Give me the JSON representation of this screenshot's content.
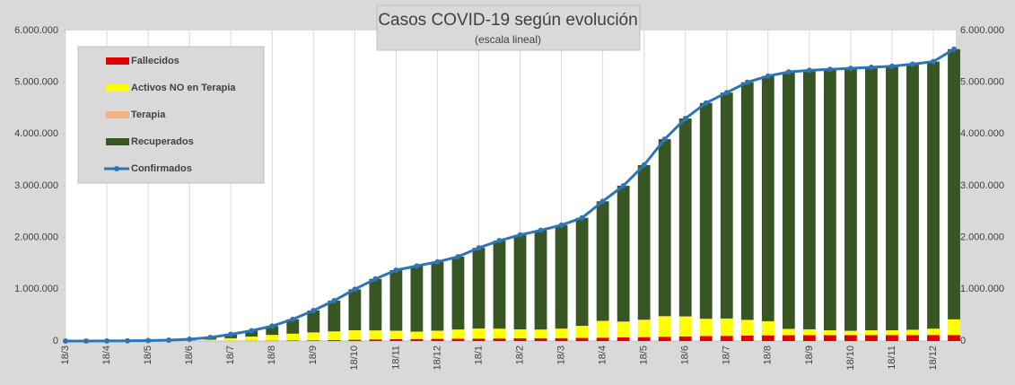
{
  "chart_data": {
    "type": "bar",
    "title": "Casos COVID-19 según evolución",
    "subtitle": "(escala lineal)",
    "categories": [
      "18/3",
      null,
      "18/4",
      null,
      "18/5",
      null,
      "18/6",
      null,
      "18/7",
      null,
      "18/8",
      null,
      "18/9",
      null,
      "18/10",
      null,
      "18/11",
      null,
      "18/12",
      null,
      "18/1",
      null,
      "18/2",
      null,
      "18/3",
      null,
      "18/4",
      null,
      "18/5",
      null,
      "18/6",
      null,
      "18/7",
      null,
      "18/8",
      null,
      "18/9",
      null,
      "18/10",
      null,
      "18/11",
      null,
      "18/12",
      null
    ],
    "stacked": true,
    "grid": "x",
    "legend": "top-left",
    "ylim": [
      0,
      6000000
    ],
    "yticks": [
      {
        "value": 0,
        "label": "0"
      },
      {
        "value": 1000000,
        "label": "1.000.000"
      },
      {
        "value": 2000000,
        "label": "2.000.000"
      },
      {
        "value": 3000000,
        "label": "3.000.000"
      },
      {
        "value": 4000000,
        "label": "4.000.000"
      },
      {
        "value": 5000000,
        "label": "5.000.000"
      },
      {
        "value": 6000000,
        "label": "6.000.000"
      }
    ],
    "y2lim": [
      0,
      6000000
    ],
    "y2ticks": [
      {
        "value": 0,
        "label": "0"
      },
      {
        "value": 1000000,
        "label": "1.000.000"
      },
      {
        "value": 2000000,
        "label": "2.000.000"
      },
      {
        "value": 3000000,
        "label": "3.000.000"
      },
      {
        "value": 4000000,
        "label": "4.000.000"
      },
      {
        "value": 5000000,
        "label": "5.000.000"
      },
      {
        "value": 6000000,
        "label": "6.000.000"
      }
    ],
    "series": [
      {
        "name": "Fallecidos",
        "type": "bar",
        "color": "#e00000",
        "values": [
          0,
          0,
          100,
          200,
          350,
          500,
          800,
          1500,
          2500,
          4000,
          6000,
          9000,
          13000,
          18000,
          24000,
          31000,
          36000,
          39000,
          42000,
          45000,
          48000,
          50000,
          52000,
          54000,
          56000,
          60000,
          65000,
          70000,
          75000,
          83000,
          90000,
          95000,
          100000,
          105000,
          110000,
          112000,
          114000,
          115000,
          116000,
          116000,
          116000,
          116000,
          117000,
          117000
        ]
      },
      {
        "name": "Activos NO en Terapia",
        "type": "bar",
        "color": "#ffff00",
        "values": [
          50,
          500,
          1500,
          2000,
          3000,
          5000,
          10000,
          25000,
          50000,
          80000,
          110000,
          130000,
          150000,
          165000,
          180000,
          170000,
          160000,
          140000,
          155000,
          175000,
          190000,
          185000,
          170000,
          165000,
          180000,
          230000,
          320000,
          300000,
          330000,
          390000,
          380000,
          330000,
          330000,
          300000,
          270000,
          120000,
          110000,
          90000,
          80000,
          90000,
          90000,
          100000,
          120000,
          300000
        ]
      },
      {
        "name": "Terapia",
        "type": "bar",
        "color": "#f4b183",
        "values": [
          0,
          50,
          100,
          150,
          200,
          300,
          500,
          800,
          1200,
          1800,
          2500,
          3200,
          3500,
          3700,
          3900,
          3800,
          3500,
          3200,
          3000,
          3000,
          3200,
          3400,
          3500,
          3600,
          3700,
          4200,
          5500,
          6500,
          7000,
          7500,
          7000,
          6000,
          5000,
          4000,
          3200,
          2500,
          2200,
          2000,
          1800,
          1600,
          1500,
          1500,
          1500,
          1600
        ]
      },
      {
        "name": "Recuperados",
        "type": "bar",
        "color": "#375623",
        "values": [
          50,
          450,
          800,
          2150,
          4450,
          11200,
          23700,
          42700,
          76300,
          114200,
          171500,
          277800,
          423500,
          593300,
          792100,
          995200,
          1170500,
          1267800,
          1330000,
          1407000,
          1558800,
          1701600,
          1824500,
          1917400,
          2000300,
          2085800,
          2309500,
          2623500,
          2988000,
          3419500,
          3823000,
          4169000,
          4365000,
          4591000,
          4736800,
          4965500,
          5003800,
          5043000,
          5072200,
          5082400,
          5102500,
          5132500,
          5161500,
          5221400
        ]
      },
      {
        "name": "Confirmados",
        "type": "line",
        "color": "#2e75b6",
        "values": [
          100,
          1000,
          2500,
          4500,
          8000,
          17000,
          35000,
          70000,
          130000,
          200000,
          290000,
          420000,
          590000,
          780000,
          1000000,
          1200000,
          1370000,
          1450000,
          1530000,
          1630000,
          1800000,
          1940000,
          2050000,
          2140000,
          2240000,
          2380000,
          2700000,
          3000000,
          3400000,
          3900000,
          4300000,
          4600000,
          4800000,
          5000000,
          5120000,
          5200000,
          5230000,
          5250000,
          5270000,
          5290000,
          5310000,
          5350000,
          5400000,
          5640000
        ]
      }
    ]
  }
}
